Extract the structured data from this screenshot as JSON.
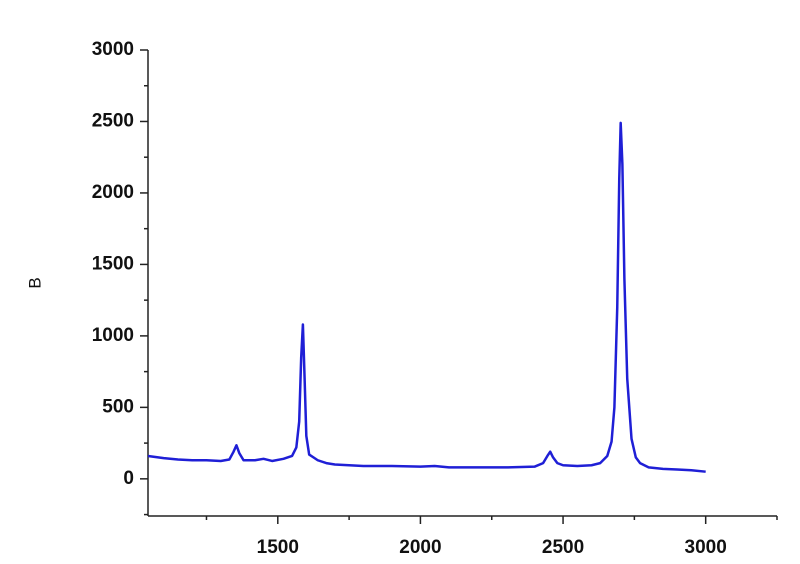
{
  "chart_data": {
    "type": "line",
    "ylabel": "B",
    "x": [
      1045,
      1100,
      1150,
      1200,
      1250,
      1300,
      1330,
      1345,
      1355,
      1365,
      1380,
      1420,
      1450,
      1480,
      1520,
      1550,
      1565,
      1575,
      1582,
      1588,
      1594,
      1600,
      1610,
      1625,
      1640,
      1670,
      1700,
      1800,
      1900,
      2000,
      2050,
      2100,
      2200,
      2300,
      2400,
      2430,
      2445,
      2455,
      2465,
      2480,
      2500,
      2550,
      2600,
      2630,
      2655,
      2670,
      2680,
      2690,
      2697,
      2702,
      2708,
      2715,
      2725,
      2740,
      2755,
      2770,
      2800,
      2850,
      2900,
      2950,
      3000
    ],
    "values": [
      160,
      145,
      135,
      130,
      130,
      125,
      135,
      190,
      235,
      180,
      130,
      130,
      140,
      125,
      140,
      160,
      220,
      400,
      850,
      1080,
      700,
      300,
      170,
      150,
      130,
      110,
      100,
      90,
      90,
      85,
      90,
      80,
      80,
      80,
      85,
      110,
      160,
      190,
      150,
      110,
      95,
      90,
      95,
      110,
      160,
      260,
      500,
      1200,
      2100,
      2490,
      2200,
      1400,
      700,
      280,
      150,
      110,
      80,
      70,
      65,
      60,
      50
    ],
    "color": "#1f1fd6",
    "xlim": [
      1045,
      3250
    ],
    "ylim": [
      -260,
      3000
    ],
    "xticks": [
      1500,
      2000,
      2500,
      3000
    ],
    "yticks": [
      0,
      500,
      1000,
      1500,
      2000,
      2500,
      3000
    ],
    "xminorticks": [
      1250,
      1750,
      2250,
      2750,
      3250
    ],
    "yminorticks": [
      -250,
      250,
      750,
      1250,
      1750,
      2250,
      2750
    ]
  }
}
